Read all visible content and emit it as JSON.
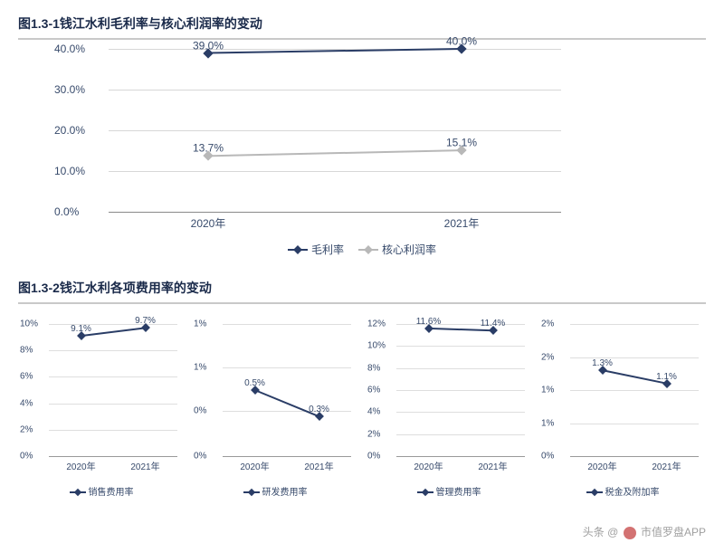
{
  "colors": {
    "text": "#374a6b",
    "title": "#1a2a4a",
    "grid": "#d7d7d7",
    "axis": "#8a8a8a",
    "series_dark": "#2a3d66",
    "series_light": "#b8b8b8",
    "bg": "#ffffff"
  },
  "chart1": {
    "title": "图1.3-1钱江水利毛利率与核心利润率的变动",
    "type": "line",
    "ylim": [
      0,
      40
    ],
    "ytick_step": 10,
    "ytick_suffix": ".0%",
    "categories": [
      "2020年",
      "2021年"
    ],
    "x_positions_pct": [
      22,
      78
    ],
    "series": [
      {
        "name": "毛利率",
        "color": "#2a3d66",
        "values": [
          39.0,
          40.0
        ],
        "labels": [
          "39.0%",
          "40.0%"
        ]
      },
      {
        "name": "核心利润率",
        "color": "#b8b8b8",
        "values": [
          13.7,
          15.1
        ],
        "labels": [
          "13.7%",
          "15.1%"
        ]
      }
    ],
    "title_fontsize": 14,
    "label_fontsize": 12
  },
  "chart2": {
    "title": "图1.3-2钱江水利各项费用率的变动",
    "title_fontsize": 14,
    "categories": [
      "2020年",
      "2021年"
    ],
    "x_positions_pct": [
      25,
      75
    ],
    "small_color": "#2a3d66",
    "charts": [
      {
        "legend": "销售费用率",
        "ylim": [
          0,
          10
        ],
        "ytick_step": 2,
        "ytick_suffix": "%",
        "values": [
          9.1,
          9.7
        ],
        "labels": [
          "9.1%",
          "9.7%"
        ]
      },
      {
        "legend": "研发费用率",
        "ylim": [
          0,
          1
        ],
        "yticks_explicit": [
          "0%",
          "0%",
          "1%",
          "1%"
        ],
        "ytick_pos_pct": [
          100,
          66,
          33,
          0
        ],
        "values": [
          0.5,
          0.3
        ],
        "labels": [
          "0.5%",
          "0.3%"
        ]
      },
      {
        "legend": "管理费用率",
        "ylim": [
          0,
          12
        ],
        "ytick_step": 2,
        "ytick_suffix": "%",
        "values": [
          11.6,
          11.4
        ],
        "labels": [
          "11.6%",
          "11.4%"
        ]
      },
      {
        "legend": "税金及附加率",
        "ylim": [
          0,
          2
        ],
        "yticks_explicit": [
          "0%",
          "1%",
          "1%",
          "2%",
          "2%"
        ],
        "ytick_pos_pct": [
          100,
          75,
          50,
          25,
          0
        ],
        "values": [
          1.3,
          1.1
        ],
        "labels": [
          "1.3%",
          "1.1%"
        ]
      }
    ]
  },
  "watermark": {
    "prefix": "头条",
    "at": "@",
    "suffix": "市值罗盘APP"
  }
}
